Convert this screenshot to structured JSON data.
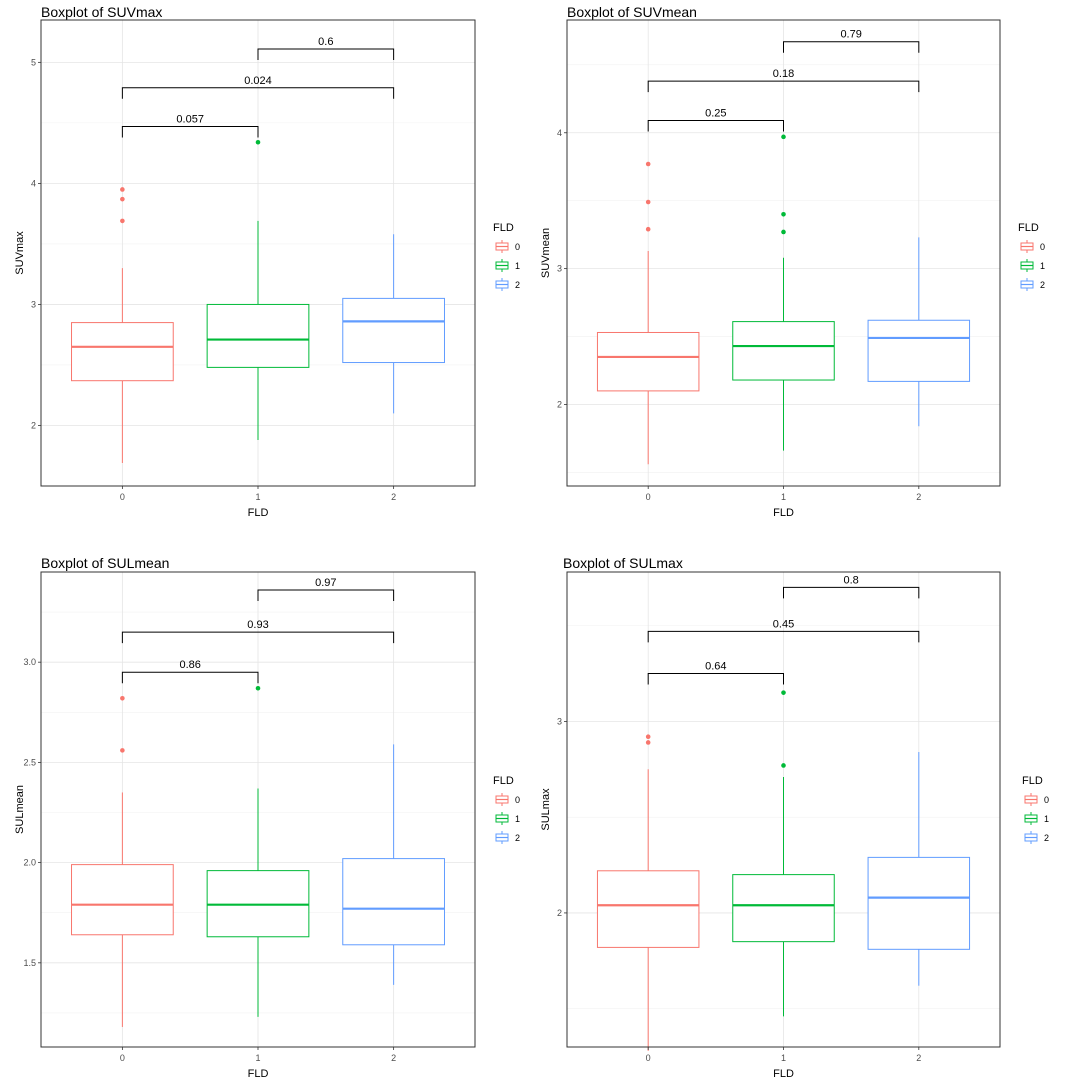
{
  "chart_data": [
    {
      "type": "boxplot",
      "title": "Boxplot of SUVmax",
      "xlabel": "FLD",
      "ylabel": "SUVmax",
      "ylim": [
        1.5,
        5.35
      ],
      "yticks": [
        2,
        3,
        4,
        5
      ],
      "ytick_labels": [
        "2",
        "3",
        "4",
        "5"
      ],
      "categories": [
        "0",
        "1",
        "2"
      ],
      "grid": true,
      "legend": {
        "title": "FLD",
        "placement": "right",
        "labels": [
          "0",
          "1",
          "2"
        ]
      },
      "boxes": [
        {
          "group": "0",
          "min": 1.69,
          "q1": 2.37,
          "median": 2.65,
          "q3": 2.85,
          "max": 3.3,
          "outliers": [
            3.69,
            3.87,
            3.95
          ]
        },
        {
          "group": "1",
          "min": 1.88,
          "q1": 2.48,
          "median": 2.71,
          "q3": 3.0,
          "max": 3.69,
          "outliers": [
            4.34
          ]
        },
        {
          "group": "2",
          "min": 2.1,
          "q1": 2.52,
          "median": 2.86,
          "q3": 3.05,
          "max": 3.58,
          "outliers": []
        }
      ],
      "comparisons": [
        {
          "groups": [
            "0",
            "1"
          ],
          "label": "0.057",
          "y": 4.47
        },
        {
          "groups": [
            "0",
            "2"
          ],
          "label": "0.024",
          "y": 4.79
        },
        {
          "groups": [
            "1",
            "2"
          ],
          "label": "0.6",
          "y": 5.11
        }
      ]
    },
    {
      "type": "boxplot",
      "title": "Boxplot of SUVmean",
      "xlabel": "FLD",
      "ylabel": "SUVmean",
      "ylim": [
        1.4,
        4.83
      ],
      "yticks": [
        2,
        3,
        4
      ],
      "ytick_labels": [
        "2",
        "3",
        "4"
      ],
      "categories": [
        "0",
        "1",
        "2"
      ],
      "grid": true,
      "legend": {
        "title": "FLD",
        "placement": "right",
        "labels": [
          "0",
          "1",
          "2"
        ]
      },
      "boxes": [
        {
          "group": "0",
          "min": 1.56,
          "q1": 2.1,
          "median": 2.35,
          "q3": 2.53,
          "max": 3.13,
          "outliers": [
            3.29,
            3.49,
            3.77
          ]
        },
        {
          "group": "1",
          "min": 1.66,
          "q1": 2.18,
          "median": 2.43,
          "q3": 2.61,
          "max": 3.08,
          "outliers": [
            3.27,
            3.4,
            3.97
          ]
        },
        {
          "group": "2",
          "min": 1.84,
          "q1": 2.17,
          "median": 2.49,
          "q3": 2.62,
          "max": 3.23,
          "outliers": []
        }
      ],
      "comparisons": [
        {
          "groups": [
            "0",
            "1"
          ],
          "label": "0.25",
          "y": 4.09
        },
        {
          "groups": [
            "0",
            "2"
          ],
          "label": "0.18",
          "y": 4.38
        },
        {
          "groups": [
            "1",
            "2"
          ],
          "label": "0.79",
          "y": 4.67
        }
      ]
    },
    {
      "type": "boxplot",
      "title": "Boxplot of SULmean",
      "xlabel": "FLD",
      "ylabel": "SULmean",
      "ylim": [
        1.08,
        3.45
      ],
      "yticks": [
        1.5,
        2.0,
        2.5,
        3.0
      ],
      "ytick_labels": [
        "1.5",
        "2.0",
        "2.5",
        "3.0"
      ],
      "categories": [
        "0",
        "1",
        "2"
      ],
      "grid": true,
      "legend": {
        "title": "FLD",
        "placement": "right",
        "labels": [
          "0",
          "1",
          "2"
        ]
      },
      "boxes": [
        {
          "group": "0",
          "min": 1.18,
          "q1": 1.64,
          "median": 1.79,
          "q3": 1.99,
          "max": 2.35,
          "outliers": [
            2.56,
            2.82
          ]
        },
        {
          "group": "1",
          "min": 1.23,
          "q1": 1.63,
          "median": 1.79,
          "q3": 1.96,
          "max": 2.37,
          "outliers": [
            2.87
          ]
        },
        {
          "group": "2",
          "min": 1.39,
          "q1": 1.59,
          "median": 1.77,
          "q3": 2.02,
          "max": 2.59,
          "outliers": []
        }
      ],
      "comparisons": [
        {
          "groups": [
            "0",
            "1"
          ],
          "label": "0.86",
          "y": 2.95
        },
        {
          "groups": [
            "0",
            "2"
          ],
          "label": "0.93",
          "y": 3.15
        },
        {
          "groups": [
            "1",
            "2"
          ],
          "label": "0.97",
          "y": 3.36
        }
      ]
    },
    {
      "type": "boxplot",
      "title": "Boxplot of SULmax",
      "xlabel": "FLD",
      "ylabel": "SULmax",
      "ylim": [
        1.3,
        3.78
      ],
      "yticks": [
        2,
        3
      ],
      "ytick_labels": [
        "2",
        "3"
      ],
      "categories": [
        "0",
        "1",
        "2"
      ],
      "grid": true,
      "legend": {
        "title": "FLD",
        "placement": "right",
        "labels": [
          "0",
          "1",
          "2"
        ]
      },
      "boxes": [
        {
          "group": "0",
          "min": 1.28,
          "q1": 1.82,
          "median": 2.04,
          "q3": 2.22,
          "max": 2.75,
          "outliers": [
            2.89,
            2.92
          ]
        },
        {
          "group": "1",
          "min": 1.46,
          "q1": 1.85,
          "median": 2.04,
          "q3": 2.2,
          "max": 2.71,
          "outliers": [
            2.77,
            3.15
          ]
        },
        {
          "group": "2",
          "min": 1.62,
          "q1": 1.81,
          "median": 2.08,
          "q3": 2.29,
          "max": 2.84,
          "outliers": []
        }
      ],
      "comparisons": [
        {
          "groups": [
            "0",
            "1"
          ],
          "label": "0.64",
          "y": 3.25
        },
        {
          "groups": [
            "0",
            "2"
          ],
          "label": "0.45",
          "y": 3.47
        },
        {
          "groups": [
            "1",
            "2"
          ],
          "label": "0.8",
          "y": 3.7
        }
      ]
    }
  ],
  "colors": {
    "group_0": "#F8766D",
    "group_1": "#00BA38",
    "group_2": "#619CFF"
  }
}
